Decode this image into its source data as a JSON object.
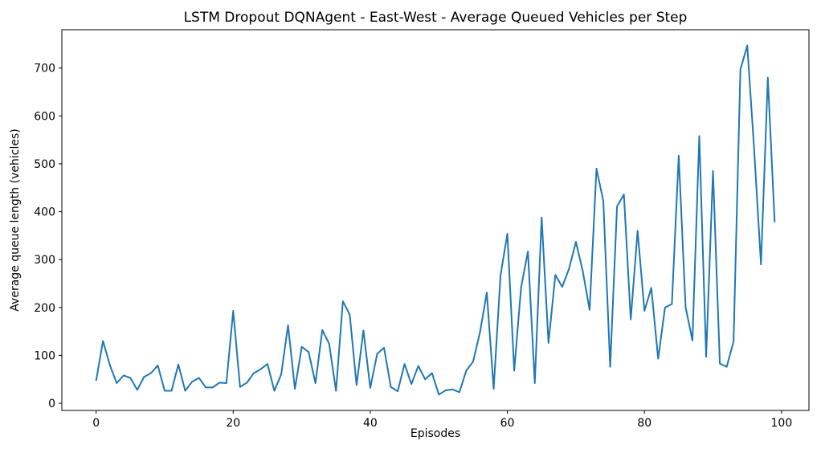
{
  "chart_data": {
    "type": "line",
    "title": "LSTM Dropout DQNAgent - East-West - Average Queued Vehicles per Step",
    "xlabel": "Episodes",
    "ylabel": "Average queue length (vehicles)",
    "xlim": [
      -5,
      104
    ],
    "ylim": [
      -15,
      780
    ],
    "xticks": [
      0,
      20,
      40,
      60,
      80,
      100
    ],
    "yticks": [
      0,
      100,
      200,
      300,
      400,
      500,
      600,
      700
    ],
    "grid": false,
    "series": [
      {
        "color": "#1f77b4",
        "x": [
          0,
          1,
          2,
          3,
          4,
          5,
          6,
          7,
          8,
          9,
          10,
          11,
          12,
          13,
          14,
          15,
          16,
          17,
          18,
          19,
          20,
          21,
          22,
          23,
          24,
          25,
          26,
          27,
          28,
          29,
          30,
          31,
          32,
          33,
          34,
          35,
          36,
          37,
          38,
          39,
          40,
          41,
          42,
          43,
          44,
          45,
          46,
          47,
          48,
          49,
          50,
          51,
          52,
          53,
          54,
          55,
          56,
          57,
          58,
          59,
          60,
          61,
          62,
          63,
          64,
          65,
          66,
          67,
          68,
          69,
          70,
          71,
          72,
          73,
          74,
          75,
          76,
          77,
          78,
          79,
          80,
          81,
          82,
          83,
          84,
          85,
          86,
          87,
          88,
          89,
          90,
          91,
          92,
          93,
          94,
          95,
          96,
          97,
          98,
          99
        ],
        "y": [
          47,
          130,
          80,
          42,
          58,
          53,
          28,
          55,
          63,
          79,
          26,
          26,
          81,
          26,
          45,
          53,
          33,
          33,
          43,
          42,
          193,
          34,
          43,
          63,
          71,
          82,
          26,
          60,
          163,
          30,
          118,
          107,
          42,
          153,
          124,
          26,
          213,
          185,
          38,
          152,
          32,
          103,
          116,
          34,
          25,
          82,
          40,
          78,
          50,
          63,
          18,
          27,
          29,
          23,
          68,
          87,
          148,
          231,
          30,
          267,
          354,
          68,
          242,
          317,
          42,
          388,
          126,
          268,
          243,
          281,
          337,
          276,
          195,
          490,
          422,
          76,
          411,
          436,
          175,
          360,
          193,
          241,
          93,
          200,
          207,
          517,
          201,
          131,
          558,
          97,
          485,
          83,
          76,
          129,
          697,
          747,
          531,
          290,
          680,
          378
        ]
      }
    ]
  }
}
